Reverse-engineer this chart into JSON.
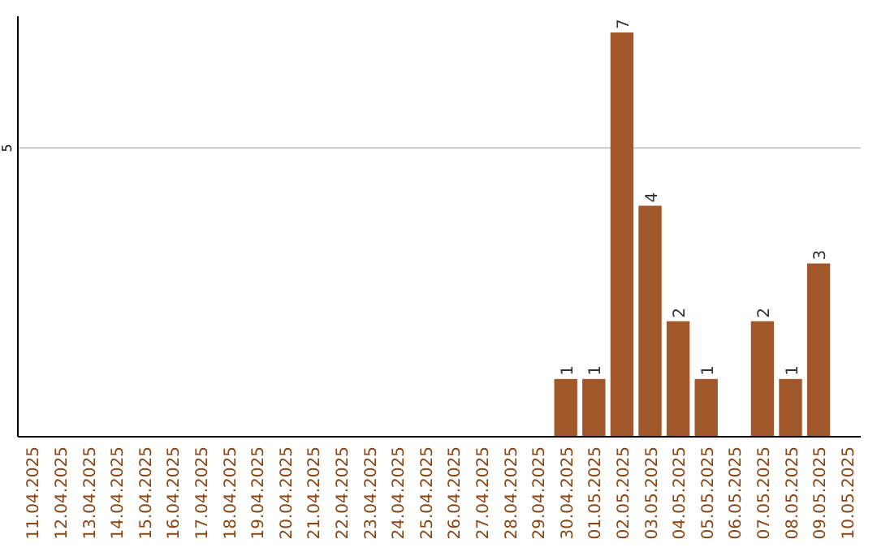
{
  "chart_data": {
    "type": "bar",
    "categories": [
      "11.04.2025",
      "12.04.2025",
      "13.04.2025",
      "14.04.2025",
      "15.04.2025",
      "16.04.2025",
      "17.04.2025",
      "18.04.2025",
      "19.04.2025",
      "20.04.2025",
      "21.04.2025",
      "22.04.2025",
      "23.04.2025",
      "24.04.2025",
      "25.04.2025",
      "26.04.2025",
      "27.04.2025",
      "28.04.2025",
      "29.04.2025",
      "30.04.2025",
      "01.05.2025",
      "02.05.2025",
      "03.05.2025",
      "04.05.2025",
      "05.05.2025",
      "06.05.2025",
      "07.05.2025",
      "08.05.2025",
      "09.05.2025",
      "10.05.2025"
    ],
    "values": [
      null,
      null,
      null,
      null,
      null,
      null,
      null,
      null,
      null,
      null,
      null,
      null,
      null,
      null,
      null,
      null,
      null,
      null,
      null,
      1,
      1,
      7,
      4,
      2,
      1,
      null,
      2,
      1,
      3,
      null
    ],
    "value_labels": [
      null,
      null,
      null,
      null,
      null,
      null,
      null,
      null,
      null,
      null,
      null,
      null,
      null,
      null,
      null,
      null,
      null,
      null,
      null,
      "1",
      "1",
      "7",
      "4",
      "2",
      "1",
      null,
      "2",
      "1",
      "3",
      null
    ],
    "color": "#a0582a",
    "ylim": [
      0,
      7
    ],
    "yticks": [
      5
    ],
    "grid": "y"
  }
}
